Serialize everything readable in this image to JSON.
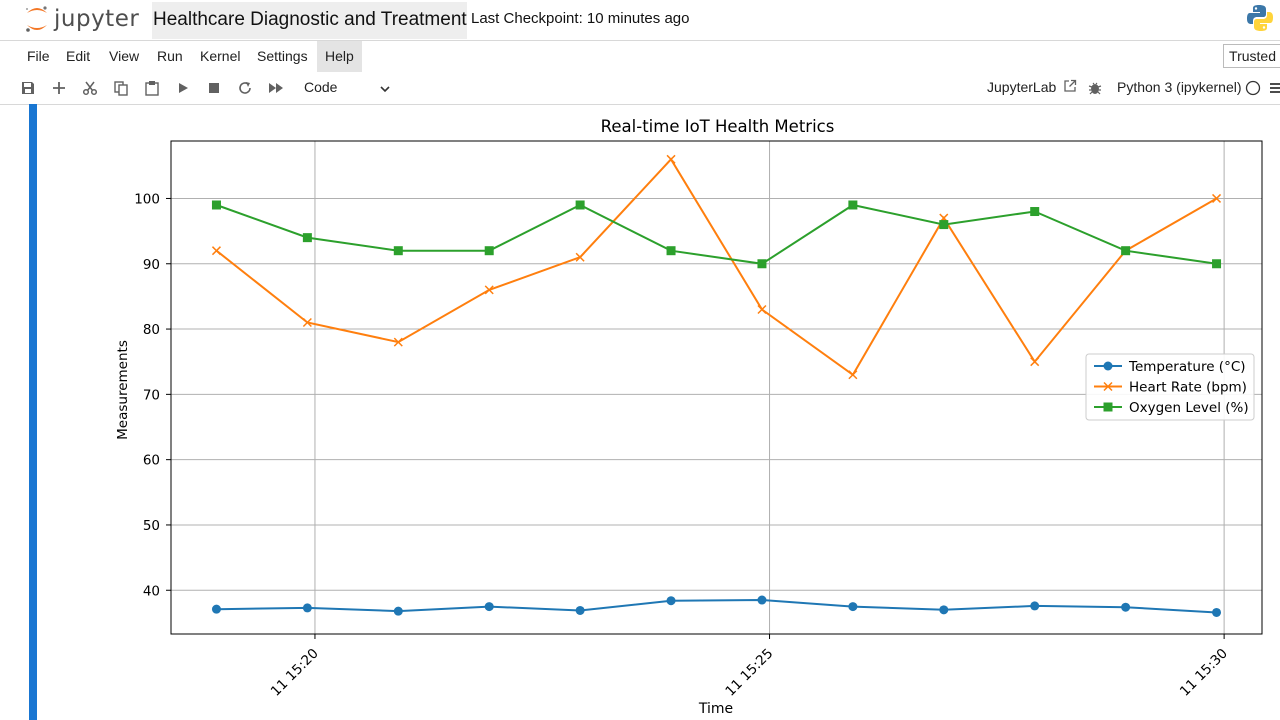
{
  "app": {
    "logo_text": "jupyter",
    "notebook_title": "Healthcare Diagnostic and Treatment",
    "checkpoint": "Last Checkpoint: 10 minutes ago"
  },
  "menu": {
    "items": [
      "File",
      "Edit",
      "View",
      "Run",
      "Kernel",
      "Settings",
      "Help"
    ],
    "trusted": "Trusted"
  },
  "toolbar": {
    "cell_type": "Code",
    "jupyterlab_link": "JupyterLab",
    "kernel_name": "Python 3 (ipykernel)"
  },
  "colors": {
    "accent": "#1976d2",
    "temperature": "#1f77b4",
    "heart_rate": "#ff7f0e",
    "oxygen": "#2ca02c"
  },
  "chart_data": {
    "type": "line",
    "title": "Real-time IoT Health Metrics",
    "xlabel": "Time",
    "ylabel": "Measurements",
    "x": [
      "15:18:55",
      "15:19:55",
      "15:20:55",
      "15:21:55",
      "15:22:55",
      "15:23:55",
      "15:24:55",
      "15:25:55",
      "15:26:55",
      "15:27:55",
      "15:28:55",
      "15:29:55"
    ],
    "x_ticks": [
      "11 15:20",
      "11 15:25",
      "11 15:30"
    ],
    "y_ticks": [
      40,
      50,
      60,
      70,
      80,
      90,
      100
    ],
    "ylim": [
      33.3,
      108.8
    ],
    "grid": true,
    "legend_position": "center-right",
    "series": [
      {
        "name": "Temperature (°C)",
        "marker": "circle",
        "values": [
          37.1,
          37.3,
          36.8,
          37.5,
          36.9,
          38.4,
          38.5,
          37.5,
          37.0,
          37.6,
          37.4,
          36.6
        ]
      },
      {
        "name": "Heart Rate (bpm)",
        "marker": "x",
        "values": [
          92,
          81,
          78,
          86,
          91,
          106,
          83,
          73,
          97,
          75,
          92,
          100
        ]
      },
      {
        "name": "Oxygen Level (%)",
        "marker": "square",
        "values": [
          99,
          94,
          92,
          92,
          99,
          92,
          90,
          99,
          96,
          98,
          92,
          90
        ]
      }
    ]
  }
}
